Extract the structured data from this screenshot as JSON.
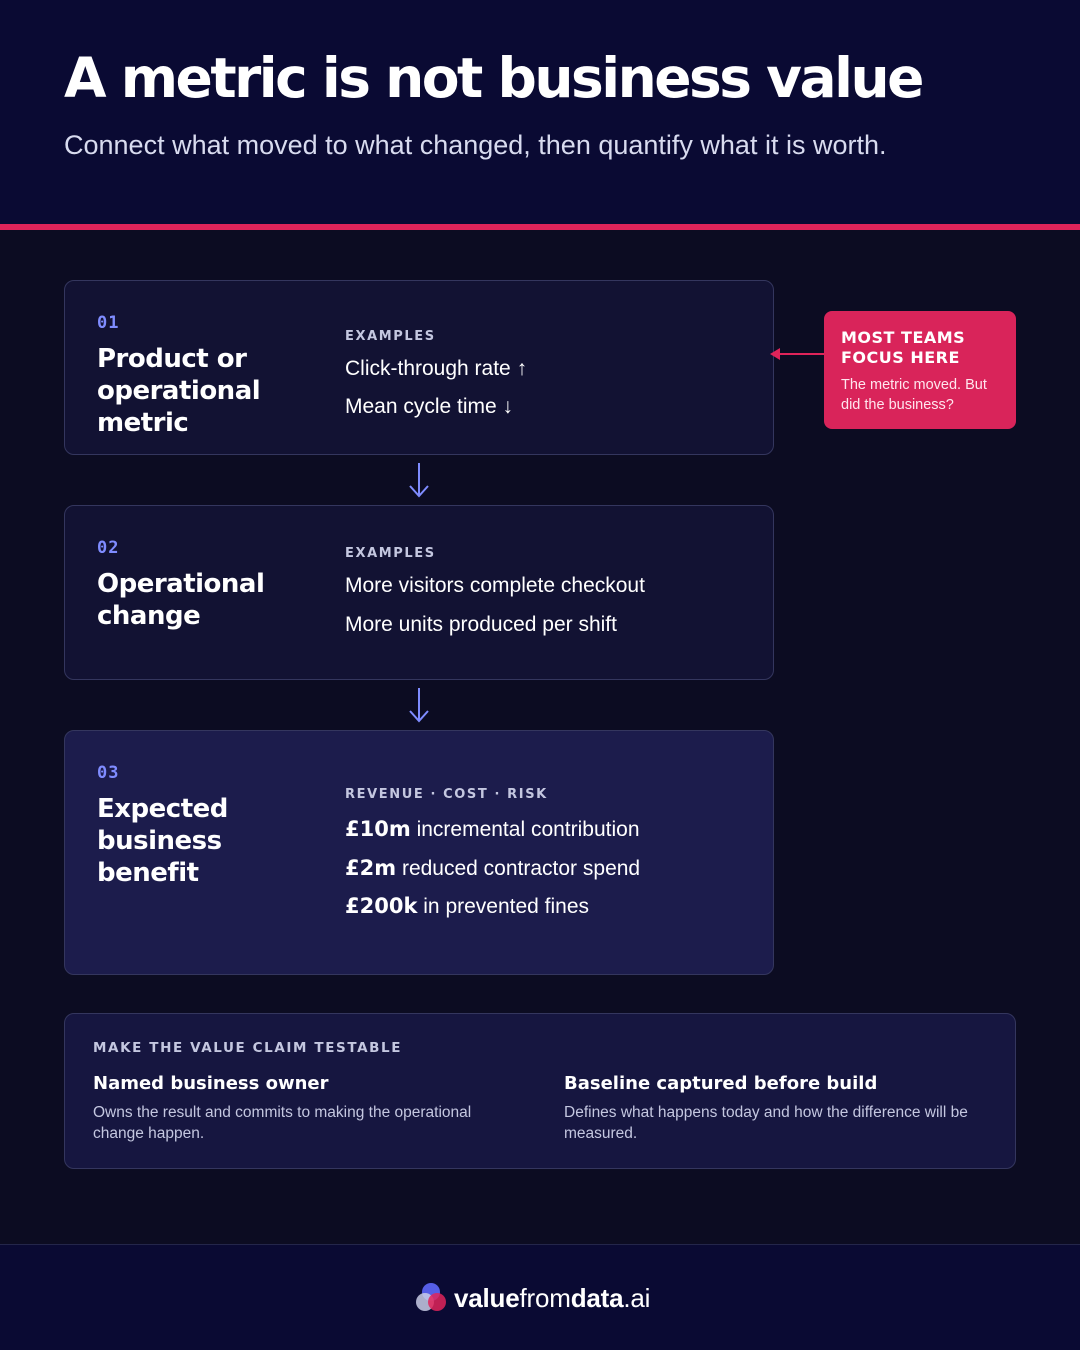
{
  "header": {
    "title": "A metric is not business value",
    "subtitle": "Connect what moved to what changed, then quantify what it is worth."
  },
  "steps": [
    {
      "number": "01",
      "title": "Product or operational metric",
      "label": "EXAMPLES",
      "items": [
        "Click-through rate ↑",
        "Mean cycle time ↓"
      ]
    },
    {
      "number": "02",
      "title": "Operational change",
      "label": "EXAMPLES",
      "items": [
        "More visitors complete checkout",
        "More units produced per shift"
      ]
    },
    {
      "number": "03",
      "title": "Expected business benefit",
      "label": "REVENUE · COST · RISK",
      "items": [
        {
          "amount": "£10m",
          "text": "incremental contribution"
        },
        {
          "amount": "£2m",
          "text": "reduced contractor spend"
        },
        {
          "amount": "£200k",
          "text": "in prevented fines"
        }
      ]
    }
  ],
  "callout": {
    "title": "MOST TEAMS FOCUS HERE",
    "text": "The metric moved. But did the business?"
  },
  "testable": {
    "label": "MAKE THE VALUE CLAIM TESTABLE",
    "columns": [
      {
        "heading": "Named business owner",
        "body": "Owns the result and commits to making the operational change happen."
      },
      {
        "heading": "Baseline captured before build",
        "body": "Defines what happens today and how the difference will be measured."
      }
    ]
  },
  "footer": {
    "brand_bold_1": "value",
    "brand_light": "from",
    "brand_bold_2": "data",
    "brand_suffix": ".ai",
    "logo_icon": "overlapping-circles-logo-icon"
  },
  "colors": {
    "accent": "#e0245a",
    "step_number": "#7f8cff",
    "background": "#0c0c22",
    "header_background": "#0a0a33"
  }
}
